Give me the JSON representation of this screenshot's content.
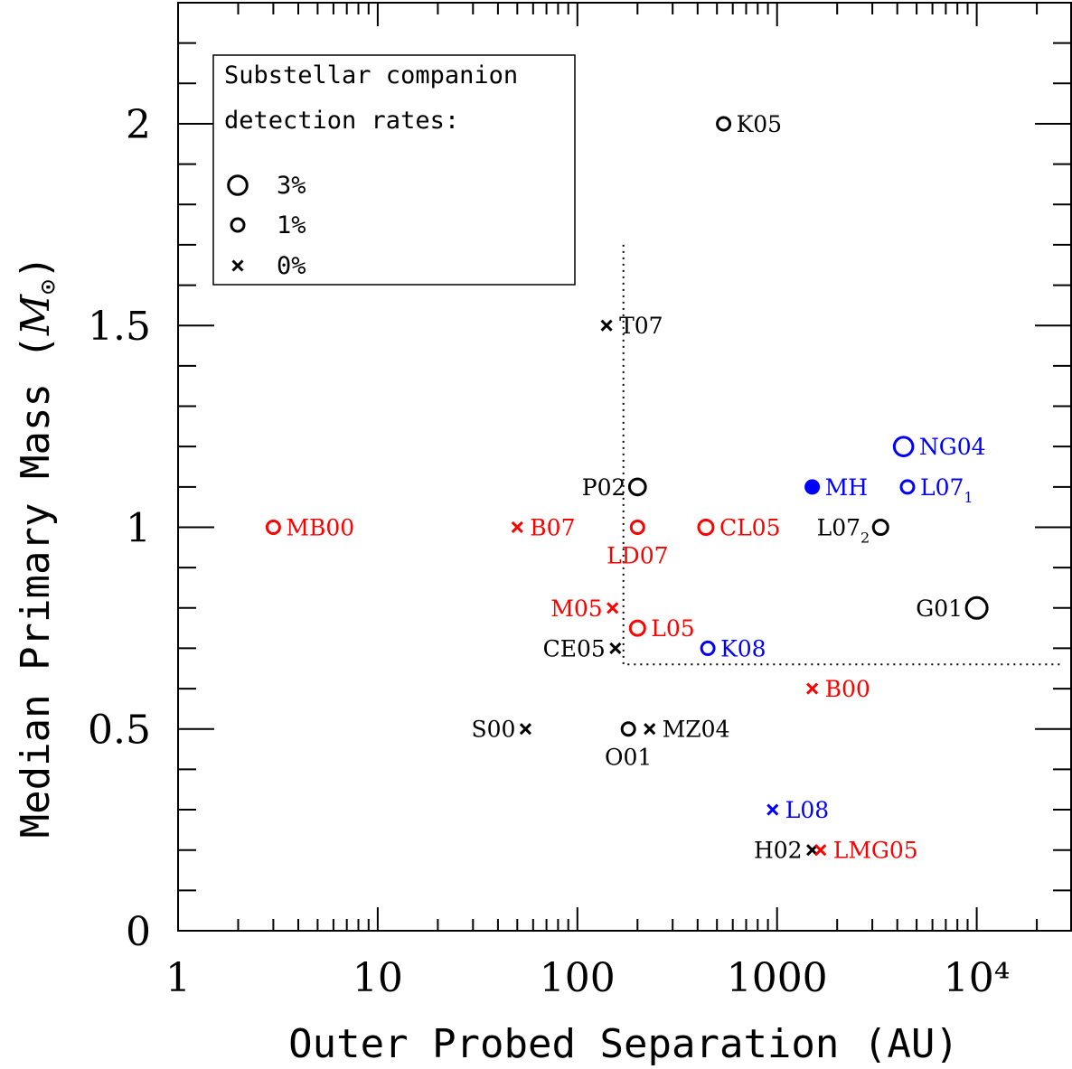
{
  "chart_data": {
    "type": "scatter",
    "xlabel": "Outer Probed Separation (AU)",
    "ylabel_main": "Median Primary Mass (",
    "ylabel_sym": "M",
    "ylabel_sub": "⊙",
    "ylabel_end": ")",
    "x_scale": "log",
    "xlim": [
      1,
      30000
    ],
    "ylim": [
      0,
      2.3
    ],
    "x_ticks": [
      {
        "value": 1,
        "label": "1"
      },
      {
        "value": 10,
        "label": "10"
      },
      {
        "value": 100,
        "label": "100"
      },
      {
        "value": 1000,
        "label": "1000"
      },
      {
        "value": 10000,
        "label": "10⁴"
      }
    ],
    "y_ticks": [
      {
        "value": 0,
        "label": "0"
      },
      {
        "value": 0.5,
        "label": "0.5"
      },
      {
        "value": 1,
        "label": "1"
      },
      {
        "value": 1.5,
        "label": "1.5"
      },
      {
        "value": 2,
        "label": "2"
      }
    ],
    "colors": {
      "black": "#000000",
      "red": "#ff0000",
      "blue": "#0000ff"
    },
    "legend": {
      "title_line1": "Substellar companion",
      "title_line2": "detection rates:",
      "entries": [
        {
          "marker": "circle",
          "rate": 3,
          "label": "3%"
        },
        {
          "marker": "circle",
          "rate": 1,
          "label": "1%"
        },
        {
          "marker": "cross",
          "rate": 0,
          "label": "0%"
        }
      ]
    },
    "boundary": {
      "x": 170,
      "y_top": 1.7,
      "y": 0.66,
      "style": "dotted"
    },
    "points": [
      {
        "name": "K05",
        "x": 540,
        "y": 2.0,
        "marker": "circle",
        "rate": 1,
        "color": "black",
        "label": "K05",
        "side": "right"
      },
      {
        "name": "T07",
        "x": 140,
        "y": 1.5,
        "marker": "cross",
        "rate": 0,
        "color": "black",
        "label": "T07",
        "side": "right"
      },
      {
        "name": "NG04",
        "x": 4300,
        "y": 1.2,
        "marker": "circle",
        "rate": 3,
        "color": "blue",
        "label": "NG04",
        "side": "right"
      },
      {
        "name": "P02",
        "x": 200,
        "y": 1.1,
        "marker": "circle",
        "rate": 2,
        "color": "black",
        "label": "P02",
        "side": "left"
      },
      {
        "name": "MH",
        "x": 1500,
        "y": 1.1,
        "marker": "filled",
        "rate": 1,
        "color": "blue",
        "label": "MH",
        "side": "right"
      },
      {
        "name": "L07_1",
        "x": 4500,
        "y": 1.1,
        "marker": "circle",
        "rate": 1,
        "color": "blue",
        "label": "L07",
        "sub": "1",
        "side": "right"
      },
      {
        "name": "MB00",
        "x": 3,
        "y": 1.0,
        "marker": "circle",
        "rate": 1,
        "color": "red",
        "label": "MB00",
        "side": "right"
      },
      {
        "name": "B07",
        "x": 50,
        "y": 1.0,
        "marker": "cross",
        "rate": 0,
        "color": "red",
        "label": "B07",
        "side": "right"
      },
      {
        "name": "LD07",
        "x": 200,
        "y": 1.0,
        "marker": "circle",
        "rate": 1,
        "color": "red",
        "label": "LD07",
        "side": "below"
      },
      {
        "name": "CL05",
        "x": 440,
        "y": 1.0,
        "marker": "circle",
        "rate": 1.5,
        "color": "red",
        "label": "CL05",
        "side": "right"
      },
      {
        "name": "L07_2",
        "x": 3300,
        "y": 1.0,
        "marker": "circle",
        "rate": 1.5,
        "color": "black",
        "label": "L07",
        "sub": "2",
        "side": "left"
      },
      {
        "name": "M05",
        "x": 150,
        "y": 0.8,
        "marker": "cross",
        "rate": 0,
        "color": "red",
        "label": "M05",
        "side": "left"
      },
      {
        "name": "G01",
        "x": 10000,
        "y": 0.8,
        "marker": "circle",
        "rate": 4,
        "color": "black",
        "label": "G01",
        "side": "left"
      },
      {
        "name": "L05",
        "x": 200,
        "y": 0.75,
        "marker": "circle",
        "rate": 1.5,
        "color": "red",
        "label": "L05",
        "side": "right"
      },
      {
        "name": "CE05",
        "x": 155,
        "y": 0.7,
        "marker": "cross",
        "rate": 0,
        "color": "black",
        "label": "CE05",
        "side": "left"
      },
      {
        "name": "K08",
        "x": 450,
        "y": 0.7,
        "marker": "circle",
        "rate": 1,
        "color": "blue",
        "label": "K08",
        "side": "right"
      },
      {
        "name": "B00",
        "x": 1500,
        "y": 0.6,
        "marker": "cross",
        "rate": 0,
        "color": "red",
        "label": "B00",
        "side": "right"
      },
      {
        "name": "S00",
        "x": 55,
        "y": 0.5,
        "marker": "cross",
        "rate": 0,
        "color": "black",
        "label": "S00",
        "side": "left"
      },
      {
        "name": "O01",
        "x": 180,
        "y": 0.5,
        "marker": "circle",
        "rate": 1,
        "color": "black",
        "label": "O01",
        "side": "below"
      },
      {
        "name": "MZ04",
        "x": 230,
        "y": 0.5,
        "marker": "cross",
        "rate": 0,
        "color": "black",
        "label": "MZ04",
        "side": "right"
      },
      {
        "name": "L08",
        "x": 950,
        "y": 0.3,
        "marker": "cross",
        "rate": 0,
        "color": "blue",
        "label": "L08",
        "side": "right"
      },
      {
        "name": "H02",
        "x": 1500,
        "y": 0.2,
        "marker": "cross",
        "rate": 0,
        "color": "black",
        "label": "H02",
        "side": "left"
      },
      {
        "name": "LMG05",
        "x": 1650,
        "y": 0.2,
        "marker": "cross",
        "rate": 0,
        "color": "red",
        "label": "LMG05",
        "side": "right"
      }
    ]
  }
}
